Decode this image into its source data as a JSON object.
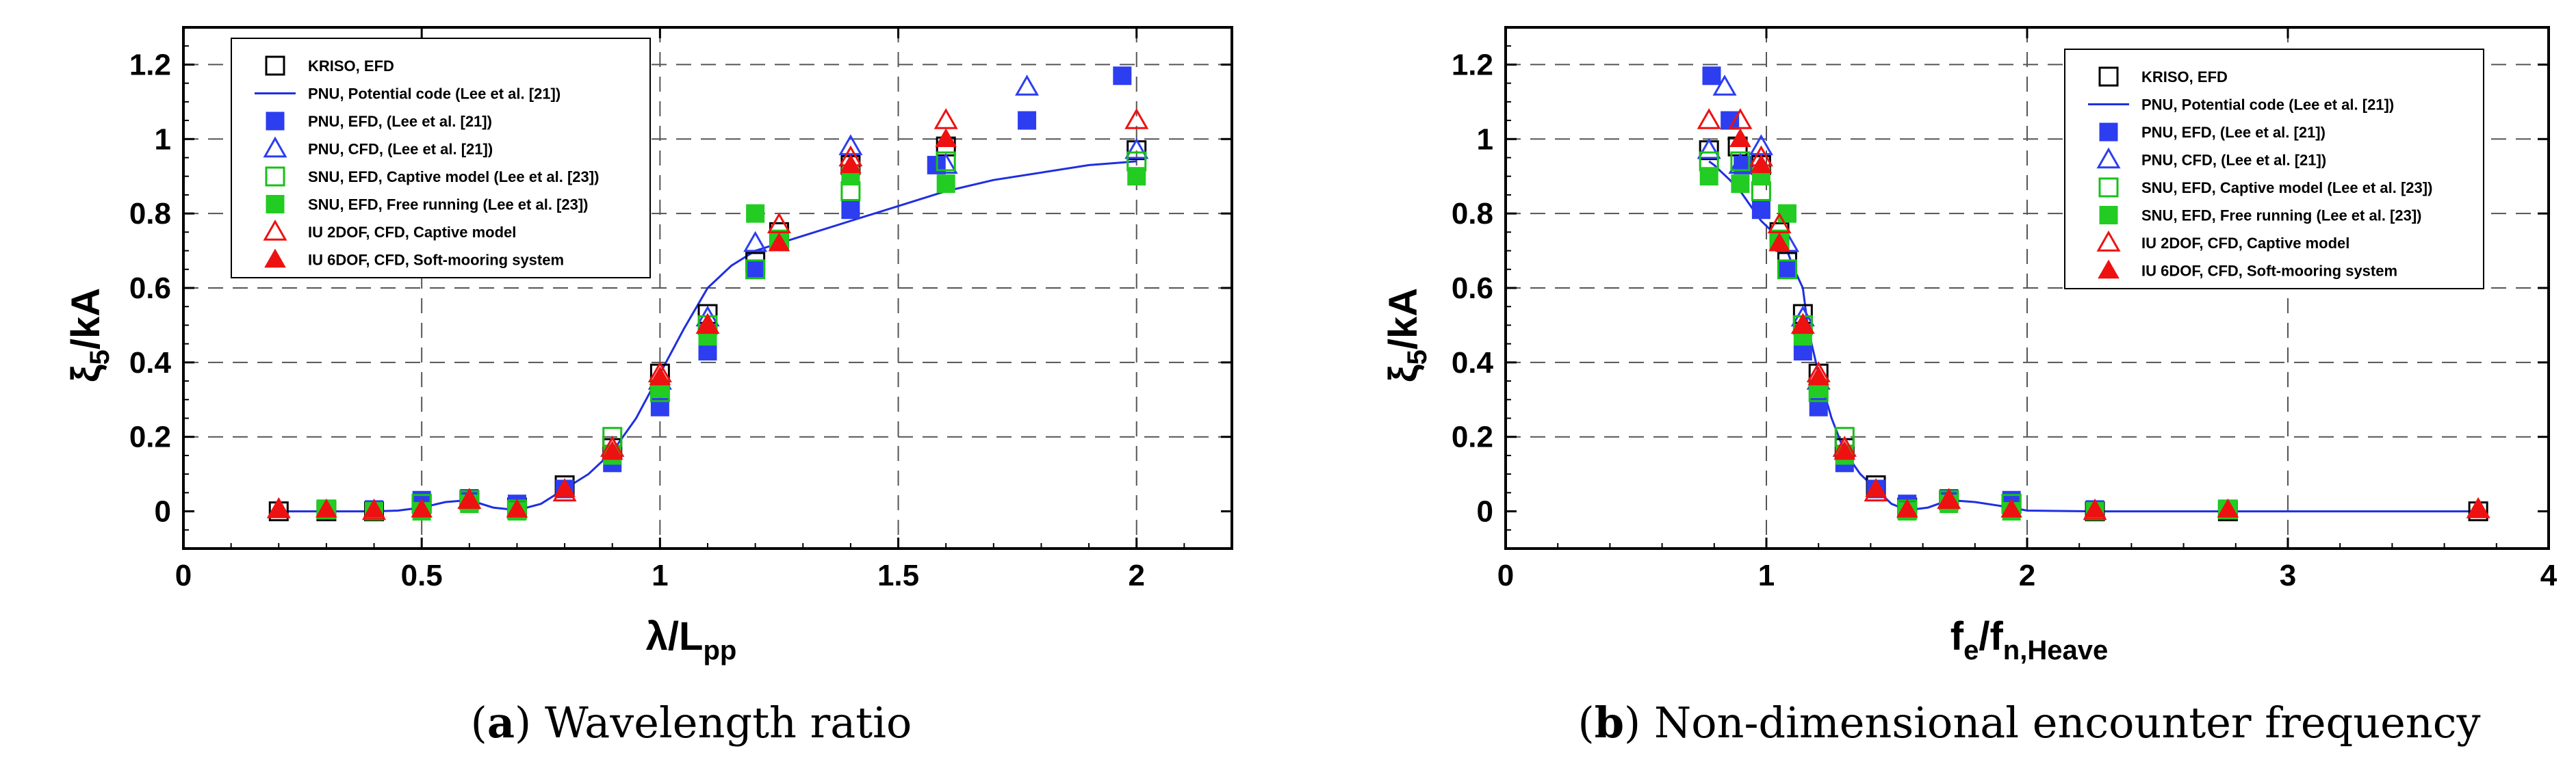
{
  "series_styles": [
    {
      "key": "kriso",
      "shape": "square",
      "filled": false,
      "color": "#000000"
    },
    {
      "key": "pnu_pot",
      "shape": "line",
      "filled": false,
      "color": "#1f2fe0"
    },
    {
      "key": "pnu_efd",
      "shape": "square",
      "filled": true,
      "color": "#2c3ef0"
    },
    {
      "key": "pnu_cfd",
      "shape": "triangle",
      "filled": false,
      "color": "#2c3ef0"
    },
    {
      "key": "snu_capt",
      "shape": "square",
      "filled": false,
      "color": "#18c018"
    },
    {
      "key": "snu_free",
      "shape": "square",
      "filled": true,
      "color": "#22cc22"
    },
    {
      "key": "iu2dof",
      "shape": "triangle",
      "filled": false,
      "color": "#ee1111"
    },
    {
      "key": "iu6dof",
      "shape": "triangle",
      "filled": true,
      "color": "#ee1111"
    }
  ],
  "chart_data": [
    {
      "id": "a",
      "type": "scatter",
      "caption_label": "a",
      "caption_text": "Wavelength ratio",
      "xlabel_main": "λ/L",
      "xlabel_sub": "pp",
      "ylabel_main": "ξ",
      "ylabel_sub": "5",
      "ylabel_rest": "/kA",
      "xlim": [
        0,
        2.2
      ],
      "ylim": [
        -0.1,
        1.3
      ],
      "xticks": [
        0,
        0.5,
        1,
        1.5,
        2
      ],
      "xtick_labels": [
        "0",
        "0.5",
        "1",
        "1.5",
        "2"
      ],
      "yticks": [
        0,
        0.2,
        0.4,
        0.6,
        0.8,
        1,
        1.2
      ],
      "ytick_labels": [
        "0",
        "0.2",
        "0.4",
        "0.6",
        "0.8",
        "1",
        "1.2"
      ],
      "xgrid": [
        0.5,
        1,
        1.5,
        2
      ],
      "ygrid": [
        0.2,
        0.4,
        0.6,
        0.8,
        1,
        1.2
      ],
      "legend_position": "top-left",
      "legend": [
        "KRISO, EFD",
        "PNU, Potential code (Lee et al. [21])",
        "PNU, EFD, (Lee et al. [21])",
        "PNU, CFD, (Lee et al. [21])",
        "SNU, EFD, Captive model (Lee et al. [23])",
        "SNU, EFD, Free running (Lee et al. [23])",
        "IU 2DOF, CFD, Captive model",
        "IU 6DOF, CFD, Soft-mooring system"
      ],
      "series": [
        {
          "name": "KRISO, EFD",
          "x": [
            0.2,
            0.3,
            0.4,
            0.5,
            0.6,
            0.7,
            0.8,
            0.9,
            1.0,
            1.1,
            1.2,
            1.25,
            1.4,
            1.6,
            2.0
          ],
          "y": [
            0.0,
            0.0,
            0.0,
            0.02,
            0.03,
            0.01,
            0.07,
            0.17,
            0.37,
            0.53,
            0.67,
            0.75,
            0.93,
            0.98,
            0.97
          ]
        },
        {
          "name": "PNU, Potential code (Lee et al. [21])",
          "x": [
            0.2,
            0.3,
            0.4,
            0.45,
            0.5,
            0.55,
            0.6,
            0.65,
            0.7,
            0.75,
            0.8,
            0.85,
            0.9,
            0.95,
            1.0,
            1.05,
            1.1,
            1.15,
            1.2,
            1.3,
            1.4,
            1.5,
            1.6,
            1.7,
            1.8,
            1.9,
            2.0
          ],
          "y": [
            0.0,
            0.0,
            0.0,
            0.002,
            0.01,
            0.025,
            0.03,
            0.01,
            0.003,
            0.02,
            0.06,
            0.1,
            0.16,
            0.25,
            0.37,
            0.49,
            0.6,
            0.66,
            0.7,
            0.74,
            0.78,
            0.82,
            0.86,
            0.89,
            0.91,
            0.93,
            0.94
          ]
        },
        {
          "name": "PNU, EFD, (Lee et al. [21])",
          "x": [
            0.4,
            0.5,
            0.6,
            0.7,
            0.8,
            0.9,
            1.0,
            1.1,
            1.2,
            1.4,
            1.58,
            1.77,
            1.97
          ],
          "y": [
            0.005,
            0.03,
            0.035,
            0.02,
            0.06,
            0.13,
            0.28,
            0.43,
            0.65,
            0.81,
            0.93,
            1.05,
            1.17
          ]
        },
        {
          "name": "PNU, CFD, (Lee et al. [21])",
          "x": [
            0.9,
            1.0,
            1.1,
            1.2,
            1.4,
            1.6,
            1.77,
            2.0
          ],
          "y": [
            0.17,
            0.35,
            0.52,
            0.72,
            0.98,
            0.93,
            1.14,
            0.97
          ]
        },
        {
          "name": "SNU, EFD, Captive model (Lee et al. [23])",
          "x": [
            0.3,
            0.5,
            0.6,
            0.7,
            0.9,
            1.0,
            1.1,
            1.2,
            1.25,
            1.4,
            1.6,
            2.0
          ],
          "y": [
            0.005,
            0.02,
            0.03,
            0.005,
            0.2,
            0.32,
            0.5,
            0.65,
            0.73,
            0.86,
            0.94,
            0.94
          ]
        },
        {
          "name": "SNU, EFD, Free running (Lee et al. [23])",
          "x": [
            0.3,
            0.4,
            0.5,
            0.6,
            0.7,
            0.9,
            1.0,
            1.1,
            1.2,
            1.25,
            1.4,
            1.6,
            2.0
          ],
          "y": [
            0.005,
            0.0,
            0.0,
            0.02,
            0.0,
            0.15,
            0.33,
            0.47,
            0.8,
            0.73,
            0.9,
            0.88,
            0.9
          ]
        },
        {
          "name": "IU 2DOF, CFD, Captive model",
          "x": [
            0.2,
            0.4,
            0.6,
            0.8,
            0.9,
            1.0,
            1.1,
            1.25,
            1.4,
            1.6,
            2.0
          ],
          "y": [
            0.005,
            0.0,
            0.03,
            0.05,
            0.17,
            0.37,
            0.5,
            0.77,
            0.95,
            1.05,
            1.05
          ]
        },
        {
          "name": "IU 6DOF, CFD, Soft-mooring system",
          "x": [
            0.2,
            0.3,
            0.4,
            0.5,
            0.6,
            0.7,
            0.8,
            0.9,
            1.0,
            1.1,
            1.25,
            1.4,
            1.6
          ],
          "y": [
            0.005,
            0.005,
            0.005,
            0.005,
            0.03,
            0.005,
            0.06,
            0.16,
            0.36,
            0.5,
            0.72,
            0.93,
            1.0
          ]
        }
      ]
    },
    {
      "id": "b",
      "type": "scatter",
      "caption_label": "b",
      "caption_text": "Non-dimensional encounter frequency",
      "xlabel_main": "f",
      "xlabel_sub1": "e",
      "xlabel_mid": "/f",
      "xlabel_sub": "n,Heave",
      "ylabel_main": "ξ",
      "ylabel_sub": "5",
      "ylabel_rest": "/kA",
      "xlim": [
        0,
        4
      ],
      "ylim": [
        -0.1,
        1.3
      ],
      "xticks": [
        0,
        1,
        2,
        3,
        4
      ],
      "xtick_labels": [
        "0",
        "1",
        "2",
        "3",
        "4"
      ],
      "yticks": [
        0,
        0.2,
        0.4,
        0.6,
        0.8,
        1,
        1.2
      ],
      "ytick_labels": [
        "0",
        "0.2",
        "0.4",
        "0.6",
        "0.8",
        "1",
        "1.2"
      ],
      "xgrid": [
        1,
        2,
        3
      ],
      "ygrid": [
        0.2,
        0.4,
        0.6,
        0.8,
        1,
        1.2
      ],
      "legend_position": "top-right",
      "legend": [
        "KRISO, EFD",
        "PNU, Potential code (Lee et al. [21])",
        "PNU, EFD, (Lee et al. [21])",
        "PNU, CFD, (Lee et al. [21])",
        "SNU, EFD, Captive model (Lee et al. [23])",
        "SNU, EFD, Free running (Lee et al. [23])",
        "IU 2DOF, CFD, Captive model",
        "IU 6DOF, CFD, Soft-mooring system"
      ],
      "series": [
        {
          "name": "KRISO, EFD",
          "x": [
            3.73,
            2.77,
            2.26,
            1.94,
            1.7,
            1.54,
            1.42,
            1.3,
            1.2,
            1.14,
            1.08,
            1.05,
            0.98,
            0.89,
            0.78
          ],
          "y": [
            0.0,
            0.0,
            0.0,
            0.02,
            0.03,
            0.01,
            0.07,
            0.17,
            0.37,
            0.53,
            0.67,
            0.75,
            0.93,
            0.98,
            0.97
          ]
        },
        {
          "name": "PNU, Potential code (Lee et al. [21])",
          "x": [
            3.73,
            2.77,
            2.26,
            2.0,
            1.94,
            1.8,
            1.7,
            1.62,
            1.54,
            1.48,
            1.42,
            1.36,
            1.3,
            1.25,
            1.2,
            1.16,
            1.14,
            1.1,
            1.08,
            1.04,
            0.98,
            0.94,
            0.9,
            0.86,
            0.83,
            0.8,
            0.78
          ],
          "y": [
            0.0,
            0.0,
            0.0,
            0.002,
            0.01,
            0.025,
            0.03,
            0.01,
            0.003,
            0.02,
            0.06,
            0.1,
            0.16,
            0.25,
            0.37,
            0.49,
            0.6,
            0.66,
            0.7,
            0.74,
            0.78,
            0.82,
            0.86,
            0.89,
            0.91,
            0.93,
            0.94
          ]
        },
        {
          "name": "PNU, EFD, (Lee et al. [21])",
          "x": [
            2.26,
            1.94,
            1.7,
            1.54,
            1.42,
            1.3,
            1.2,
            1.14,
            1.08,
            0.98,
            0.91,
            0.86,
            0.79
          ],
          "y": [
            0.005,
            0.03,
            0.035,
            0.02,
            0.06,
            0.13,
            0.28,
            0.43,
            0.65,
            0.81,
            0.93,
            1.05,
            1.17
          ]
        },
        {
          "name": "PNU, CFD, (Lee et al. [21])",
          "x": [
            1.3,
            1.2,
            1.14,
            1.08,
            0.98,
            0.9,
            0.84,
            0.78
          ],
          "y": [
            0.17,
            0.35,
            0.52,
            0.72,
            0.98,
            0.93,
            1.14,
            0.97
          ]
        },
        {
          "name": "SNU, EFD, Captive model (Lee et al. [23])",
          "x": [
            2.77,
            1.94,
            1.7,
            1.54,
            1.3,
            1.2,
            1.14,
            1.08,
            1.05,
            0.98,
            0.9,
            0.78
          ],
          "y": [
            0.005,
            0.02,
            0.03,
            0.005,
            0.2,
            0.32,
            0.5,
            0.65,
            0.73,
            0.86,
            0.94,
            0.94
          ]
        },
        {
          "name": "SNU, EFD, Free running (Lee et al. [23])",
          "x": [
            2.77,
            2.26,
            1.94,
            1.7,
            1.54,
            1.3,
            1.2,
            1.14,
            1.08,
            1.05,
            0.98,
            0.9,
            0.78
          ],
          "y": [
            0.005,
            0.0,
            0.0,
            0.02,
            0.0,
            0.15,
            0.33,
            0.47,
            0.8,
            0.73,
            0.9,
            0.88,
            0.9
          ]
        },
        {
          "name": "IU 2DOF, CFD, Captive model",
          "x": [
            3.73,
            2.26,
            1.7,
            1.42,
            1.3,
            1.2,
            1.14,
            1.05,
            0.98,
            0.9,
            0.78
          ],
          "y": [
            0.005,
            0.0,
            0.03,
            0.05,
            0.17,
            0.37,
            0.5,
            0.77,
            0.95,
            1.05,
            1.05
          ]
        },
        {
          "name": "IU 6DOF, CFD, Soft-mooring system",
          "x": [
            3.73,
            2.77,
            2.26,
            1.94,
            1.7,
            1.54,
            1.42,
            1.3,
            1.2,
            1.14,
            1.05,
            0.98,
            0.9
          ],
          "y": [
            0.005,
            0.005,
            0.005,
            0.005,
            0.03,
            0.005,
            0.06,
            0.16,
            0.36,
            0.5,
            0.72,
            0.93,
            1.0
          ]
        }
      ]
    }
  ]
}
